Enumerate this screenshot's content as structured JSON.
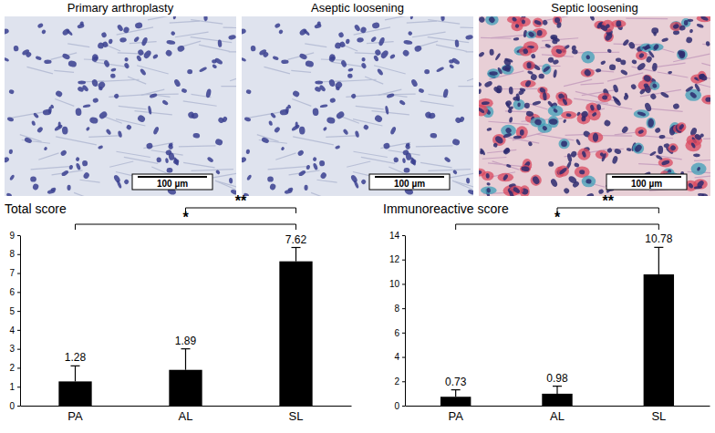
{
  "images": [
    {
      "title": "Primary arthroplasty",
      "scale_bar": "100 µm"
    },
    {
      "title": "Aseptic loosening",
      "scale_bar": "100 µm"
    },
    {
      "title": "Septic loosening",
      "scale_bar": "100 µm"
    }
  ],
  "chart_data": [
    {
      "type": "bar",
      "title": "Total score",
      "categories": [
        "PA",
        "AL",
        "SL"
      ],
      "values": [
        1.28,
        1.89,
        7.62
      ],
      "errors": [
        0.82,
        1.11,
        0.73
      ],
      "color": "#000000",
      "ylim": [
        0,
        9
      ],
      "yticks": [
        0,
        1,
        2,
        3,
        4,
        5,
        6,
        7,
        8,
        9
      ],
      "data_labels": true,
      "annotations": [
        {
          "text": "*",
          "categories": [
            "PA",
            "SL"
          ]
        },
        {
          "text": "**",
          "categories": [
            "AL",
            "SL"
          ]
        }
      ]
    },
    {
      "type": "bar",
      "title": "Immunoreactive score",
      "categories": [
        "PA",
        "AL",
        "SL"
      ],
      "values": [
        0.73,
        0.98,
        10.78
      ],
      "errors": [
        0.57,
        0.62,
        2.22
      ],
      "color": "#000000",
      "ylim": [
        0,
        14
      ],
      "yticks": [
        0,
        2,
        4,
        6,
        8,
        10,
        12,
        14
      ],
      "data_labels": true,
      "annotations": [
        {
          "text": "*",
          "categories": [
            "PA",
            "SL"
          ]
        },
        {
          "text": "**",
          "categories": [
            "AL",
            "SL"
          ]
        }
      ]
    }
  ]
}
